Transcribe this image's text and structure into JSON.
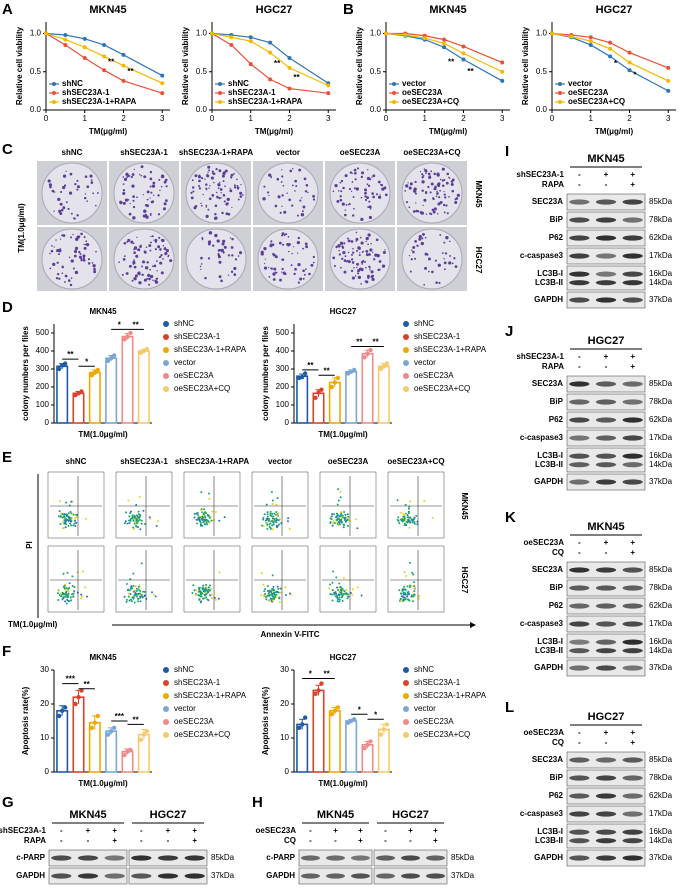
{
  "panel_labels": [
    "A",
    "B",
    "C",
    "D",
    "E",
    "F",
    "G",
    "H",
    "I",
    "J",
    "K",
    "L"
  ],
  "chart_data": [
    {
      "type": "line",
      "title": "MKN45",
      "x_label": "TM(μg/ml)",
      "y_label": "Relative cell viability",
      "x": [
        0,
        0.5,
        1,
        1.5,
        2,
        3
      ],
      "xlim": [
        0,
        3.2
      ],
      "ylim": [
        0,
        1.15
      ],
      "xticks": [
        0,
        1,
        2,
        3
      ],
      "yticks": [
        {
          "value": 0,
          "label": "0.0"
        },
        {
          "value": 0.5,
          "label": "0.5"
        },
        {
          "value": 1,
          "label": "1.0"
        }
      ],
      "series": [
        {
          "name": "shNC",
          "color": "#2e75b6",
          "values": [
            1,
            0.98,
            0.93,
            0.85,
            0.72,
            0.45
          ]
        },
        {
          "name": "shSEC23A-1",
          "color": "#e8503a",
          "values": [
            1,
            0.85,
            0.68,
            0.52,
            0.38,
            0.22
          ]
        },
        {
          "name": "shSEC23A-1+RAPA",
          "color": "#f5b800",
          "values": [
            1,
            0.92,
            0.82,
            0.7,
            0.58,
            0.35
          ]
        }
      ],
      "annotations": [
        {
          "text": "**",
          "x": 1.6,
          "y": 0.62
        },
        {
          "text": "**",
          "x": 2.1,
          "y": 0.5
        }
      ]
    },
    {
      "type": "line",
      "title": "HGC27",
      "x_label": "TM(μg/ml)",
      "y_label": "Relative cell viability",
      "x": [
        0,
        0.5,
        1,
        1.5,
        2,
        3
      ],
      "xlim": [
        0,
        3.2
      ],
      "ylim": [
        0,
        1.15
      ],
      "xticks": [
        0,
        1,
        2,
        3
      ],
      "yticks": [
        {
          "value": 0,
          "label": "0.0"
        },
        {
          "value": 0.5,
          "label": "0.5"
        },
        {
          "value": 1,
          "label": "1.0"
        }
      ],
      "series": [
        {
          "name": "shNC",
          "color": "#2e75b6",
          "values": [
            1,
            0.98,
            0.95,
            0.88,
            0.68,
            0.35
          ]
        },
        {
          "name": "shSEC23A-1",
          "color": "#e8503a",
          "values": [
            1,
            0.85,
            0.6,
            0.4,
            0.28,
            0.22
          ]
        },
        {
          "name": "shSEC23A-1+RAPA",
          "color": "#f5b800",
          "values": [
            1,
            0.95,
            0.9,
            0.75,
            0.55,
            0.32
          ]
        }
      ],
      "annotations": [
        {
          "text": "**",
          "x": 1.6,
          "y": 0.6
        },
        {
          "text": "**",
          "x": 2.1,
          "y": 0.42
        }
      ]
    },
    {
      "type": "line",
      "title": "MKN45",
      "x_label": "TM(μg/ml)",
      "y_label": "Relative cell viability",
      "x": [
        0,
        0.5,
        1,
        1.5,
        2,
        3
      ],
      "xlim": [
        0,
        3.2
      ],
      "ylim": [
        0,
        1.15
      ],
      "xticks": [
        0,
        1,
        2,
        3
      ],
      "yticks": [
        {
          "value": 0,
          "label": "0.0"
        },
        {
          "value": 0.5,
          "label": "0.5"
        },
        {
          "value": 1,
          "label": "1.0"
        }
      ],
      "series": [
        {
          "name": "vector",
          "color": "#2e75b6",
          "values": [
            1,
            0.97,
            0.92,
            0.82,
            0.66,
            0.38
          ]
        },
        {
          "name": "oeSEC23A",
          "color": "#e8503a",
          "values": [
            1,
            1,
            0.97,
            0.92,
            0.83,
            0.62
          ]
        },
        {
          "name": "oeSEC23A+CQ",
          "color": "#f5b800",
          "values": [
            1,
            0.98,
            0.94,
            0.87,
            0.74,
            0.5
          ]
        }
      ],
      "annotations": [
        {
          "text": "**",
          "x": 1.6,
          "y": 0.62
        },
        {
          "text": "**",
          "x": 2.1,
          "y": 0.5
        }
      ]
    },
    {
      "type": "line",
      "title": "HGC27",
      "x_label": "TM(μg/ml)",
      "y_label": "Relative cell viability",
      "x": [
        0,
        0.5,
        1,
        1.5,
        2,
        3
      ],
      "xlim": [
        0,
        3.2
      ],
      "ylim": [
        0,
        1.15
      ],
      "xticks": [
        0,
        1,
        2,
        3
      ],
      "yticks": [
        {
          "value": 0,
          "label": "0.0"
        },
        {
          "value": 0.5,
          "label": "0.5"
        },
        {
          "value": 1,
          "label": "1.0"
        }
      ],
      "series": [
        {
          "name": "vector",
          "color": "#2e75b6",
          "values": [
            1,
            0.95,
            0.85,
            0.7,
            0.52,
            0.25
          ]
        },
        {
          "name": "oeSEC23A",
          "color": "#e8503a",
          "values": [
            1,
            0.98,
            0.95,
            0.88,
            0.75,
            0.55
          ]
        },
        {
          "name": "oeSEC23A+CQ",
          "color": "#f5b800",
          "values": [
            1,
            0.96,
            0.9,
            0.8,
            0.62,
            0.38
          ]
        }
      ],
      "annotations": [
        {
          "text": "*",
          "x": 1.6,
          "y": 0.6
        },
        {
          "text": "*",
          "x": 2.1,
          "y": 0.45
        }
      ]
    },
    {
      "type": "bar",
      "title": "MKN45",
      "x_label": "TM(1.0μg/ml)",
      "y_label": "colony numbers per files",
      "categories": [
        "shNC",
        "shSEC23A-1",
        "shSEC23A-1+RAPA",
        "vector",
        "oeSEC23A",
        "oeSEC23A+CQ"
      ],
      "colors": [
        "#1f5aa6",
        "#d9432e",
        "#f0a800",
        "#7aa6d6",
        "#f08a8a",
        "#f7c96b"
      ],
      "values": [
        315,
        165,
        280,
        360,
        480,
        400
      ],
      "errors": [
        15,
        10,
        15,
        15,
        17,
        10
      ],
      "points": [
        [
          300,
          320,
          330
        ],
        [
          155,
          165,
          175
        ],
        [
          265,
          280,
          295
        ],
        [
          345,
          360,
          375
        ],
        [
          465,
          480,
          500
        ],
        [
          390,
          400,
          410
        ]
      ],
      "ylim": [
        0,
        550
      ],
      "yticks": [
        0,
        100,
        200,
        300,
        400,
        500
      ],
      "annotations": [
        {
          "text": "**",
          "from": 0,
          "to": 1,
          "y": 355
        },
        {
          "text": "*",
          "from": 1,
          "to": 2,
          "y": 315
        },
        {
          "text": "*",
          "from": 3,
          "to": 4,
          "y": 520
        },
        {
          "text": "**",
          "from": 4,
          "to": 5,
          "y": 520
        }
      ]
    },
    {
      "type": "bar",
      "title": "HGC27",
      "x_label": "TM(1.0μg/ml)",
      "y_label": "colony numbers per files",
      "categories": [
        "shNC",
        "shSEC23A-1",
        "shSEC23A-1+RAPA",
        "vector",
        "oeSEC23A",
        "oeSEC23A+CQ"
      ],
      "colors": [
        "#1f5aa6",
        "#d9432e",
        "#f0a800",
        "#7aa6d6",
        "#f08a8a",
        "#f7c96b"
      ],
      "values": [
        260,
        165,
        225,
        285,
        385,
        315
      ],
      "errors": [
        12,
        20,
        25,
        10,
        20,
        15
      ],
      "points": [
        [
          250,
          255,
          275
        ],
        [
          140,
          170,
          185
        ],
        [
          200,
          225,
          250
        ],
        [
          275,
          285,
          295
        ],
        [
          365,
          385,
          405
        ],
        [
          300,
          315,
          330
        ]
      ],
      "ylim": [
        0,
        550
      ],
      "yticks": [
        0,
        100,
        200,
        300,
        400,
        500
      ],
      "annotations": [
        {
          "text": "**",
          "from": 0,
          "to": 1,
          "y": 295
        },
        {
          "text": "**",
          "from": 1,
          "to": 2,
          "y": 265
        },
        {
          "text": "**",
          "from": 3,
          "to": 4,
          "y": 425
        },
        {
          "text": "**",
          "from": 4,
          "to": 5,
          "y": 425
        }
      ]
    },
    {
      "type": "bar",
      "title": "MKN45",
      "x_label": "TM(1.0μg/ml)",
      "y_label": "Apoptosis rate(%)",
      "categories": [
        "shNC",
        "shSEC23A-1",
        "shSEC23A-1+RAPA",
        "vector",
        "oeSEC23A",
        "oeSEC23A+CQ"
      ],
      "colors": [
        "#1f5aa6",
        "#d9432e",
        "#f0a800",
        "#7aa6d6",
        "#f08a8a",
        "#f7c96b"
      ],
      "values": [
        18,
        22,
        14.5,
        12,
        6,
        11
      ],
      "errors": [
        1.5,
        2,
        2,
        1,
        0.8,
        1.5
      ],
      "points": [
        [
          16.5,
          18,
          19
        ],
        [
          20,
          22,
          24
        ],
        [
          13,
          14.5,
          16.5
        ],
        [
          11,
          12,
          13
        ],
        [
          5,
          6,
          6.5
        ],
        [
          9.5,
          11,
          12
        ]
      ],
      "ylim": [
        0,
        30
      ],
      "yticks": [
        0,
        10,
        20,
        30
      ],
      "annotations": [
        {
          "text": "***",
          "from": 0,
          "to": 1,
          "y": 26
        },
        {
          "text": "**",
          "from": 1,
          "to": 2,
          "y": 24.5
        },
        {
          "text": "***",
          "from": 3,
          "to": 4,
          "y": 15
        },
        {
          "text": "**",
          "from": 4,
          "to": 5,
          "y": 14
        }
      ]
    },
    {
      "type": "bar",
      "title": "HGC27",
      "x_label": "TM(1.0μg/ml)",
      "y_label": "Apoptosis rate(%)",
      "categories": [
        "shNC",
        "shSEC23A-1",
        "shSEC23A-1+RAPA",
        "vector",
        "oeSEC23A",
        "oeSEC23A+CQ"
      ],
      "colors": [
        "#1f5aa6",
        "#d9432e",
        "#f0a800",
        "#7aa6d6",
        "#f08a8a",
        "#f7c96b"
      ],
      "values": [
        14,
        24,
        18,
        15,
        8,
        12.5
      ],
      "errors": [
        1.5,
        1.5,
        1,
        0.5,
        1,
        1.5
      ],
      "points": [
        [
          13,
          14,
          16
        ],
        [
          23,
          24,
          26
        ],
        [
          17,
          18,
          19
        ],
        [
          14.5,
          15,
          15.5
        ],
        [
          7,
          8,
          9
        ],
        [
          11,
          12.5,
          14
        ]
      ],
      "ylim": [
        0,
        30
      ],
      "yticks": [
        0,
        10,
        20,
        30
      ],
      "annotations": [
        {
          "text": "*",
          "from": 0,
          "to": 1,
          "y": 27.5
        },
        {
          "text": "**",
          "from": 1,
          "to": 2,
          "y": 27.5
        },
        {
          "text": "*",
          "from": 3,
          "to": 4,
          "y": 17
        },
        {
          "text": "*",
          "from": 4,
          "to": 5,
          "y": 15.5
        }
      ]
    }
  ],
  "colony_images": {
    "columns": [
      "shNC",
      "shSEC23A-1",
      "shSEC23A-1+RAPA",
      "vector",
      "oeSEC23A",
      "oeSEC23A+CQ"
    ],
    "rows": [
      "MKN45",
      "HGC27"
    ],
    "side_label": "TM(1.0μg/ml)"
  },
  "flow_images": {
    "columns": [
      "shNC",
      "shSEC23A-1",
      "shSEC23A-1+RAPA",
      "vector",
      "oeSEC23A",
      "oeSEC23A+CQ"
    ],
    "rows": [
      "MKN45",
      "HGC27"
    ],
    "y_label": "PI",
    "x_label": "Annexin V-FITC",
    "side_label": "TM(1.0μg/ml)"
  },
  "blots": [
    {
      "titles": [
        "MKN45",
        "HGC27"
      ],
      "conditions": [
        {
          "label": "shSEC23A-1",
          "marks": [
            "-",
            "+",
            "+",
            "-",
            "+",
            "+"
          ]
        },
        {
          "label": "RAPA",
          "marks": [
            "-",
            "-",
            "+",
            "-",
            "-",
            "+"
          ]
        }
      ],
      "proteins": [
        {
          "name": "c-PARP",
          "kda": "85kDa"
        },
        {
          "name": "GAPDH",
          "kda": "37kDa"
        }
      ]
    },
    {
      "titles": [
        "MKN45",
        "HGC27"
      ],
      "conditions": [
        {
          "label": "oeSEC23A",
          "marks": [
            "-",
            "+",
            "+",
            "-",
            "+",
            "+"
          ]
        },
        {
          "label": "CQ",
          "marks": [
            "-",
            "-",
            "+",
            "-",
            "-",
            "+"
          ]
        }
      ],
      "proteins": [
        {
          "name": "c-PARP",
          "kda": "85kDa"
        },
        {
          "name": "GAPDH",
          "kda": "37kDa"
        }
      ]
    },
    {
      "titles": [
        "MKN45"
      ],
      "conditions": [
        {
          "label": "shSEC23A-1",
          "marks": [
            "-",
            "+",
            "+"
          ]
        },
        {
          "label": "RAPA",
          "marks": [
            "-",
            "-",
            "+"
          ]
        }
      ],
      "proteins": [
        {
          "name": "SEC23A",
          "kda": "85kDa"
        },
        {
          "name": "BiP",
          "kda": "78kDa"
        },
        {
          "name": "P62",
          "kda": "62kDa"
        },
        {
          "name": "c-caspase3",
          "kda": "17kDa"
        },
        {
          "name": "LC3B-I",
          "kda": "16kDa",
          "name2": "LC3B-II",
          "kda2": "14kDa"
        },
        {
          "name": "GAPDH",
          "kda": "37kDa"
        }
      ]
    },
    {
      "titles": [
        "HGC27"
      ],
      "conditions": [
        {
          "label": "shSEC23A-1",
          "marks": [
            "-",
            "+",
            "+"
          ]
        },
        {
          "label": "RAPA",
          "marks": [
            "-",
            "-",
            "+"
          ]
        }
      ],
      "proteins": [
        {
          "name": "SEC23A",
          "kda": "85kDa"
        },
        {
          "name": "BiP",
          "kda": "78kDa"
        },
        {
          "name": "P62",
          "kda": "62kDa"
        },
        {
          "name": "c-caspase3",
          "kda": "17kDa"
        },
        {
          "name": "LC3B-I",
          "kda": "16kDa",
          "name2": "LC3B-II",
          "kda2": "14kDa"
        },
        {
          "name": "GAPDH",
          "kda": "37kDa"
        }
      ]
    },
    {
      "titles": [
        "MKN45"
      ],
      "conditions": [
        {
          "label": "oeSEC23A",
          "marks": [
            "-",
            "+",
            "+"
          ]
        },
        {
          "label": "CQ",
          "marks": [
            "-",
            "-",
            "+"
          ]
        }
      ],
      "proteins": [
        {
          "name": "SEC23A",
          "kda": "85kDa"
        },
        {
          "name": "BiP",
          "kda": "78kDa"
        },
        {
          "name": "P62",
          "kda": "62kDa"
        },
        {
          "name": "c-caspase3",
          "kda": "17kDa"
        },
        {
          "name": "LC3B-I",
          "kda": "16kDa",
          "name2": "LC3B-II",
          "kda2": "14kDa"
        },
        {
          "name": "GAPDH",
          "kda": "37kDa"
        }
      ]
    },
    {
      "titles": [
        "HGC27"
      ],
      "conditions": [
        {
          "label": "oeSEC23A",
          "marks": [
            "-",
            "+",
            "+"
          ]
        },
        {
          "label": "CQ",
          "marks": [
            "-",
            "-",
            "+"
          ]
        }
      ],
      "proteins": [
        {
          "name": "SEC23A",
          "kda": "85kDa"
        },
        {
          "name": "BiP",
          "kda": "78kDa"
        },
        {
          "name": "P62",
          "kda": "62kDa"
        },
        {
          "name": "c-caspase3",
          "kda": "17kDa"
        },
        {
          "name": "LC3B-I",
          "kda": "16kDa",
          "name2": "LC3B-II",
          "kda2": "14kDa"
        },
        {
          "name": "GAPDH",
          "kda": "37kDa"
        }
      ]
    }
  ]
}
